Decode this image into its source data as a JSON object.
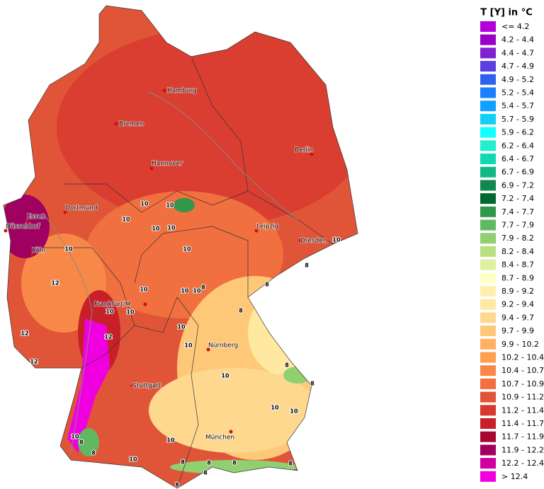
{
  "legend": {
    "title": "T [Y] in °C",
    "items": [
      {
        "label": "<= 4.2",
        "color": "#b400d8"
      },
      {
        "label": "4.2 - 4.4",
        "color": "#9a00c8"
      },
      {
        "label": "4.4 - 4.7",
        "color": "#8020d0"
      },
      {
        "label": "4.7 - 4.9",
        "color": "#5a40e0"
      },
      {
        "label": "4.9 - 5.2",
        "color": "#3060f0"
      },
      {
        "label": "5.2 - 5.4",
        "color": "#1a80ff"
      },
      {
        "label": "5.4 - 5.7",
        "color": "#10a0ff"
      },
      {
        "label": "5.7 - 5.9",
        "color": "#10d0f8"
      },
      {
        "label": "5.9 - 6.2",
        "color": "#10ffff"
      },
      {
        "label": "6.2 - 6.4",
        "color": "#20f0d0"
      },
      {
        "label": "6.4 - 6.7",
        "color": "#10d8b0"
      },
      {
        "label": "6.7 - 6.9",
        "color": "#10b888"
      },
      {
        "label": "6.9 - 7.2",
        "color": "#108850"
      },
      {
        "label": "7.2 - 7.4",
        "color": "#006830"
      },
      {
        "label": "7.4 - 7.7",
        "color": "#309848"
      },
      {
        "label": "7.7 - 7.9",
        "color": "#60b860"
      },
      {
        "label": "7.9 - 8.2",
        "color": "#90d070"
      },
      {
        "label": "8.2 - 8.4",
        "color": "#b8e080"
      },
      {
        "label": "8.4 - 8.7",
        "color": "#e0f0a0"
      },
      {
        "label": "8.7 - 8.9",
        "color": "#ffffc8"
      },
      {
        "label": "8.9 - 9.2",
        "color": "#fff0b0"
      },
      {
        "label": "9.2 - 9.4",
        "color": "#ffe8a0"
      },
      {
        "label": "9.4 - 9.7",
        "color": "#ffd890"
      },
      {
        "label": "9.7 - 9.9",
        "color": "#ffc878"
      },
      {
        "label": "9.9 - 10.2",
        "color": "#ffb060"
      },
      {
        "label": "10.2 - 10.4",
        "color": "#ffa050"
      },
      {
        "label": "10.4 - 10.7",
        "color": "#f88848"
      },
      {
        "label": "10.7 - 10.9",
        "color": "#f07040"
      },
      {
        "label": "10.9 - 11.2",
        "color": "#e05538"
      },
      {
        "label": "11.2 - 11.4",
        "color": "#d83830"
      },
      {
        "label": "11.4 - 11.7",
        "color": "#c82028"
      },
      {
        "label": "11.7 - 11.9",
        "color": "#a80830"
      },
      {
        "label": "11.9 - 12.2",
        "color": "#a00060"
      },
      {
        "label": "12.2 - 12.4",
        "color": "#d000a0"
      },
      {
        "label": "> 12.4",
        "color": "#f000e0"
      }
    ]
  },
  "cities": [
    "Hamburg",
    "Bremen",
    "Hannover",
    "Berlin",
    "Dortmund",
    "Essen",
    "Düsseldorf",
    "Köln",
    "Leipzig",
    "Dresden",
    "Frankfurt/M",
    "Nürnberg",
    "Stuttgart",
    "München"
  ],
  "contour_labels": [
    "10",
    "10",
    "10",
    "10",
    "10",
    "10",
    "10",
    "10",
    "10",
    "10",
    "10",
    "10",
    "10",
    "10",
    "10",
    "10",
    "10",
    "10",
    "10",
    "10",
    "10",
    "12",
    "12",
    "12",
    "12",
    "8",
    "8",
    "8",
    "8",
    "8",
    "8",
    "8",
    "8",
    "8",
    "8",
    "8",
    "8",
    "8",
    "8"
  ]
}
